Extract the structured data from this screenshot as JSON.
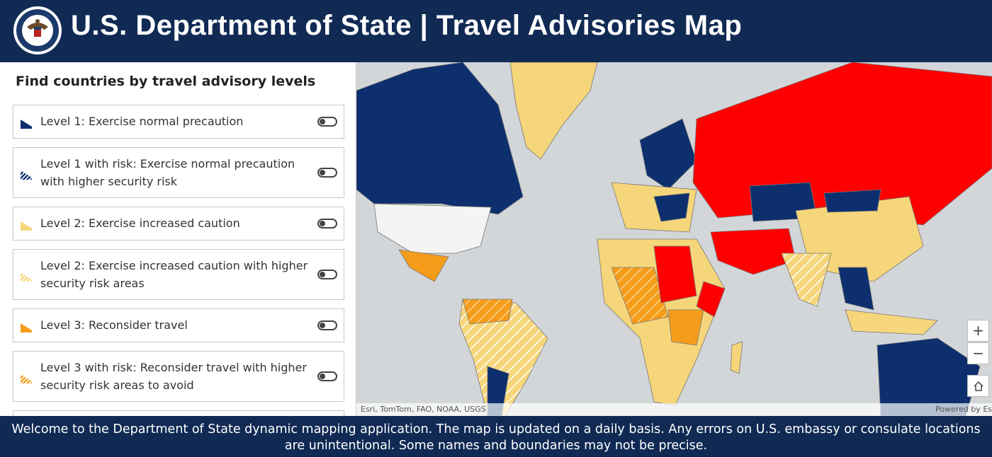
{
  "header": {
    "title": "U.S. Department of State | Travel Advisories Map"
  },
  "panel": {
    "heading": "Find countries by travel advisory levels",
    "levels": [
      {
        "label": "Level 1: Exercise normal precaution"
      },
      {
        "label": "Level 1 with risk: Exercise normal precaution with higher security risk"
      },
      {
        "label": "Level 2: Exercise increased caution"
      },
      {
        "label": "Level 2: Exercise increased caution with higher security risk areas"
      },
      {
        "label": "Level 3: Reconsider travel"
      },
      {
        "label": "Level 3 with risk: Reconsider travel with higher security risk areas to avoid"
      }
    ]
  },
  "map": {
    "attribution": "Esri, TomTom, FAO, NOAA, USGS",
    "powered_by": "Powered by Es",
    "zoom_in": "+",
    "zoom_out": "−"
  },
  "footer": {
    "text": "Welcome to the Department of State dynamic mapping application. The map is updated on a daily basis.  Any errors on U.S. embassy or consulate locations are unintentional. Some names and boundaries may not be precise."
  }
}
